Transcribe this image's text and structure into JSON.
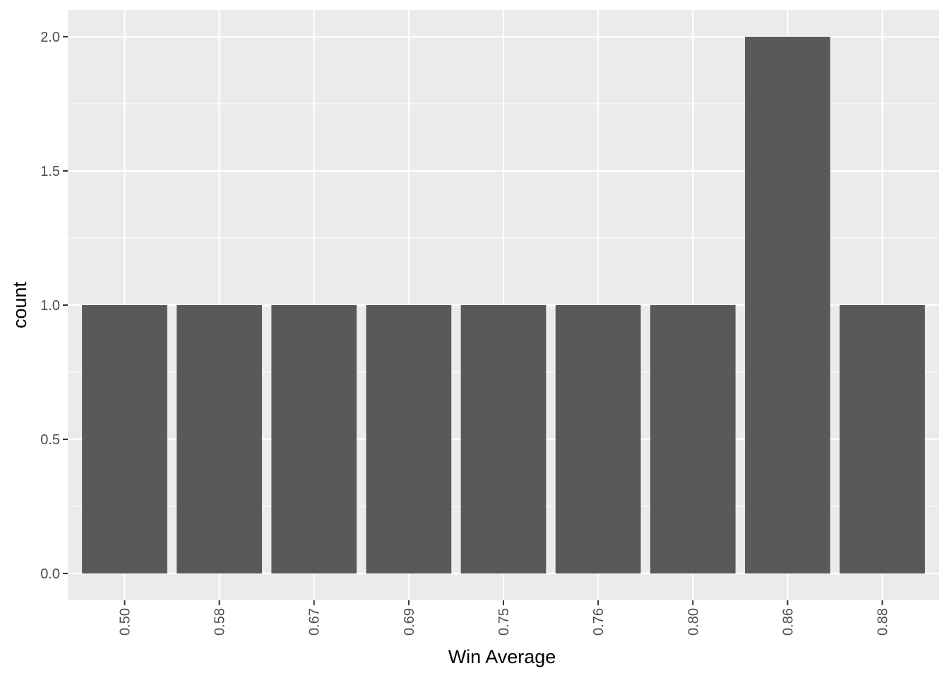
{
  "chart_data": {
    "type": "bar",
    "categories": [
      "0.50",
      "0.58",
      "0.67",
      "0.69",
      "0.75",
      "0.76",
      "0.80",
      "0.86",
      "0.88"
    ],
    "values": [
      1,
      1,
      1,
      1,
      1,
      1,
      1,
      2,
      1
    ],
    "xlabel": "Win Average",
    "ylabel": "count",
    "ylim": [
      -0.1,
      2.1
    ],
    "yticks": [
      "0.0",
      "0.5",
      "1.0",
      "1.5",
      "2.0"
    ],
    "grid": true,
    "colors": {
      "panel": "#ebebeb",
      "bar": "#595959",
      "grid": "#ffffff",
      "tick_text": "#4d4d4d",
      "title_text": "#000000"
    }
  }
}
